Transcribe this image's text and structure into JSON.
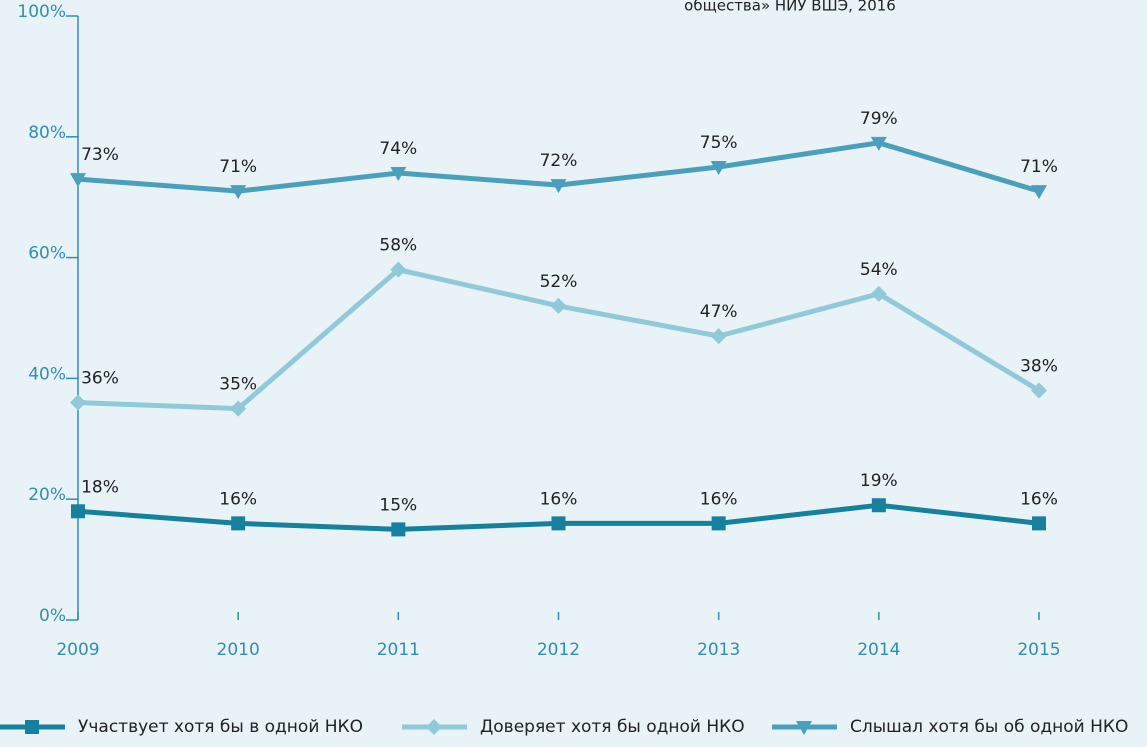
{
  "chart_data": {
    "type": "line",
    "annotation": "общества» НИУ ВШЭ, 2016",
    "categories": [
      "2009",
      "2010",
      "2011",
      "2012",
      "2013",
      "2014",
      "2015"
    ],
    "series": [
      {
        "name": "Участвует хотя бы в одной НКО",
        "color": "#16809f",
        "marker": "square",
        "values": [
          18,
          16,
          15,
          16,
          16,
          19,
          16
        ],
        "value_labels": [
          "18%",
          "16%",
          "15%",
          "16%",
          "16%",
          "19%",
          "16%"
        ]
      },
      {
        "name": "Доверяет хотя бы одной НКО",
        "color": "#8fc9da",
        "marker": "diamond",
        "values": [
          36,
          35,
          58,
          52,
          47,
          54,
          38
        ],
        "value_labels": [
          "36%",
          "35%",
          "58%",
          "52%",
          "47%",
          "54%",
          "38%"
        ]
      },
      {
        "name": "Слышал хотя бы об одной НКО",
        "color": "#4aa0bc",
        "marker": "triangle-down",
        "values": [
          73,
          71,
          74,
          72,
          75,
          79,
          71
        ],
        "value_labels": [
          "73%",
          "71%",
          "74%",
          "72%",
          "75%",
          "79%",
          "71%"
        ]
      }
    ],
    "ylim": [
      0,
      100
    ],
    "yticks": [
      {
        "value": 0,
        "label": "0%"
      },
      {
        "value": 20,
        "label": "20%"
      },
      {
        "value": 40,
        "label": "40%"
      },
      {
        "value": 60,
        "label": "60%"
      },
      {
        "value": 80,
        "label": "80%"
      },
      {
        "value": 100,
        "label": "100%"
      }
    ],
    "legend": "bottom"
  }
}
